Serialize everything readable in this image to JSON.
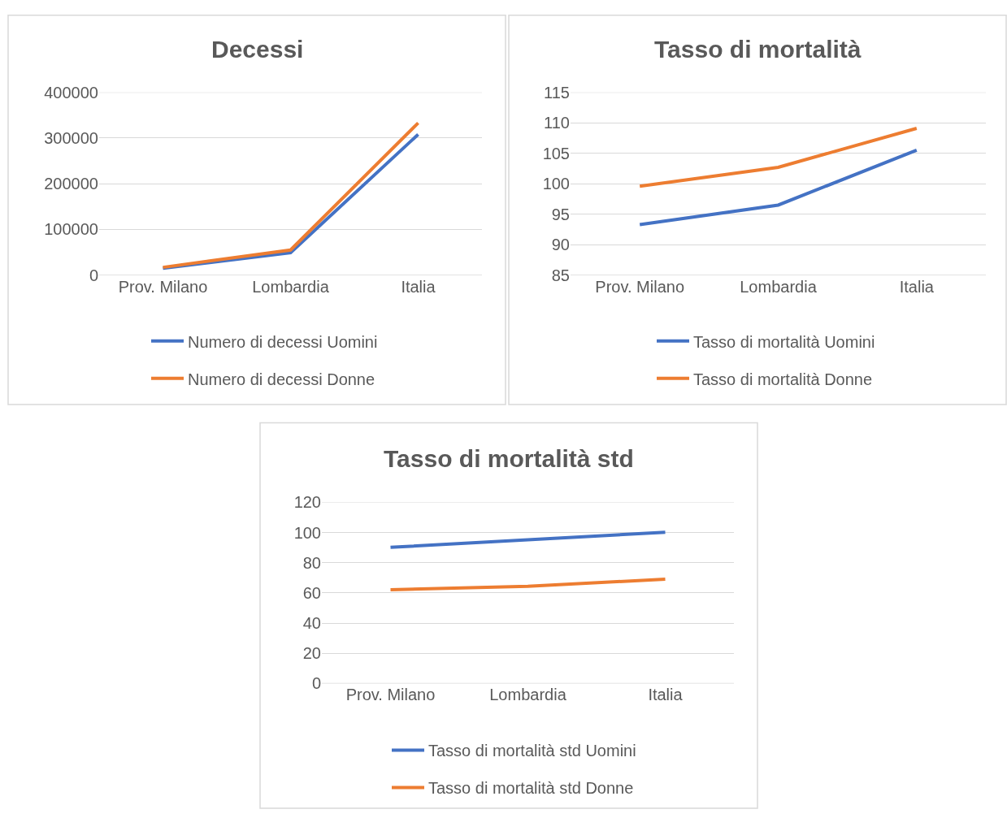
{
  "chart_data": [
    {
      "type": "line",
      "title": "Decessi",
      "categories": [
        "Prov. Milano",
        "Lombardia",
        "Italia"
      ],
      "series": [
        {
          "name": "Numero di decessi Uomini",
          "color": "#4472c4",
          "values": [
            15000,
            49000,
            308000
          ]
        },
        {
          "name": "Numero di decessi Donne",
          "color": "#ed7d31",
          "values": [
            17000,
            55000,
            333000
          ]
        }
      ],
      "ylim": [
        0,
        400000
      ],
      "yticks": [
        0,
        100000,
        200000,
        300000,
        400000
      ],
      "grid": "y",
      "legend": "bottom"
    },
    {
      "type": "line",
      "title": "Tasso di mortalità",
      "categories": [
        "Prov. Milano",
        "Lombardia",
        "Italia"
      ],
      "series": [
        {
          "name": "Tasso di mortalità Uomini",
          "color": "#4472c4",
          "values": [
            93.3,
            96.5,
            105.5
          ]
        },
        {
          "name": "Tasso di mortalità Donne",
          "color": "#ed7d31",
          "values": [
            99.6,
            102.7,
            109.1
          ]
        }
      ],
      "ylim": [
        85,
        115
      ],
      "yticks": [
        85,
        90,
        95,
        100,
        105,
        110,
        115
      ],
      "grid": "y",
      "legend": "bottom"
    },
    {
      "type": "line",
      "title": "Tasso di mortalità std",
      "categories": [
        "Prov. Milano",
        "Lombardia",
        "Italia"
      ],
      "series": [
        {
          "name": "Tasso di mortalità std Uomini",
          "color": "#4472c4",
          "values": [
            90.2,
            95.2,
            100.2
          ]
        },
        {
          "name": "Tasso di mortalità std Donne",
          "color": "#ed7d31",
          "values": [
            62.1,
            64.4,
            69.1
          ]
        }
      ],
      "ylim": [
        0,
        120
      ],
      "yticks": [
        0,
        20,
        40,
        60,
        80,
        100,
        120
      ],
      "grid": "y",
      "legend": "bottom"
    }
  ]
}
